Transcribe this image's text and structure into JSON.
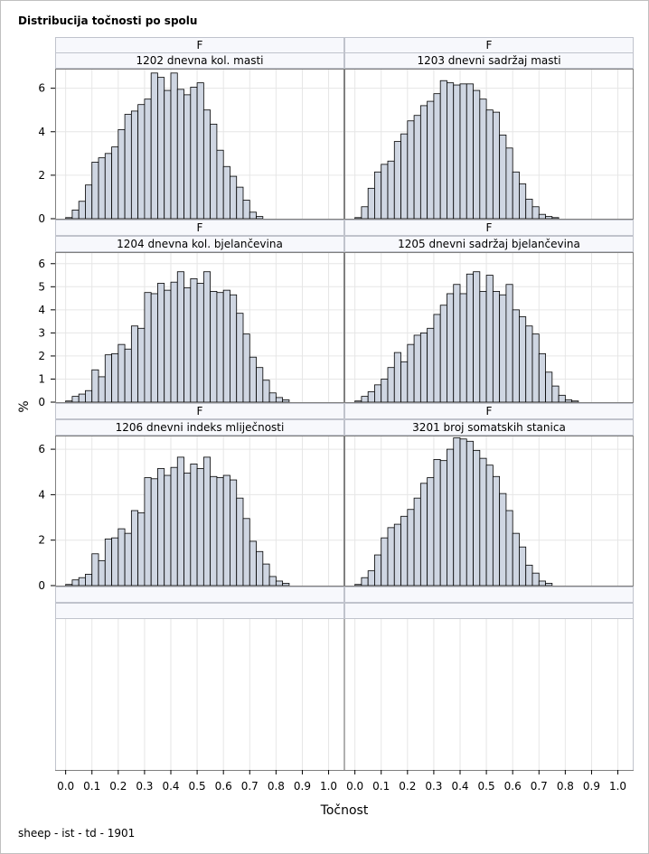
{
  "title": "Distribucija točnosti po spolu",
  "footnote": "sheep - ist - td - 1901",
  "colors": {
    "bar_fill": "#cfd6e2",
    "bar_stroke": "#000000",
    "header_fill": "#f7f8fc",
    "header_stroke": "#c0c3cc",
    "panel_border": "#808080",
    "grid": "#e6e6e6"
  },
  "chart_data": {
    "type": "bar",
    "xlabel": "Točnost",
    "ylabel": "%",
    "xlim": [
      -0.04,
      1.06
    ],
    "bin_width": 0.025,
    "bin_start": 0.0,
    "x_ticks": [
      "0.0",
      "0.1",
      "0.2",
      "0.3",
      "0.4",
      "0.5",
      "0.6",
      "0.7",
      "0.8",
      "0.9",
      "1.0"
    ],
    "grid": true,
    "row_ylims": [
      [
        0,
        6.9
      ],
      [
        0,
        6.5
      ],
      [
        0,
        6.6
      ]
    ],
    "y_ticks": [
      [
        "0",
        "2",
        "4",
        "6"
      ],
      [
        "0",
        "1",
        "2",
        "3",
        "4",
        "5",
        "6"
      ],
      [
        "0",
        "2",
        "4",
        "6"
      ]
    ],
    "panels": [
      {
        "header": "F",
        "label": "1202 dnevna kol. masti",
        "values": [
          0.05,
          0.4,
          0.8,
          1.55,
          2.6,
          2.8,
          3.0,
          3.3,
          4.1,
          4.8,
          4.95,
          5.25,
          5.5,
          6.7,
          6.5,
          5.9,
          6.7,
          5.95,
          5.7,
          6.05,
          6.25,
          5.0,
          4.35,
          3.15,
          2.4,
          1.95,
          1.45,
          0.85,
          0.3,
          0.1
        ]
      },
      {
        "header": "F",
        "label": "1203 dnevni sadržaj masti",
        "values": [
          0.05,
          0.55,
          1.4,
          2.15,
          2.5,
          2.65,
          3.55,
          3.9,
          4.5,
          4.75,
          5.2,
          5.4,
          5.75,
          6.35,
          6.25,
          6.15,
          6.2,
          6.2,
          5.9,
          5.5,
          5.0,
          4.9,
          3.85,
          3.25,
          2.15,
          1.6,
          0.9,
          0.55,
          0.2,
          0.1,
          0.05
        ]
      },
      {
        "header": "F",
        "label": "1204 dnevna kol. bjelančevina",
        "values": [
          0.05,
          0.25,
          0.35,
          0.5,
          1.4,
          1.1,
          2.05,
          2.1,
          2.5,
          2.3,
          3.3,
          3.2,
          4.75,
          4.7,
          5.15,
          4.85,
          5.2,
          5.65,
          4.95,
          5.35,
          5.15,
          5.65,
          4.8,
          4.75,
          4.85,
          4.65,
          3.85,
          2.95,
          1.95,
          1.5,
          0.95,
          0.4,
          0.2,
          0.1
        ]
      },
      {
        "header": "F",
        "label": "1205 dnevni sadržaj bjelančevina",
        "values": [
          0.05,
          0.25,
          0.45,
          0.75,
          1.0,
          1.5,
          2.15,
          1.75,
          2.5,
          2.9,
          3.0,
          3.2,
          3.8,
          4.2,
          4.7,
          5.1,
          4.7,
          5.55,
          5.65,
          4.8,
          5.5,
          4.8,
          4.65,
          5.1,
          4.0,
          3.7,
          3.3,
          2.95,
          2.1,
          1.3,
          0.7,
          0.3,
          0.1,
          0.05
        ]
      },
      {
        "header": "F",
        "label": "1206 dnevni indeks mliječnosti",
        "values": [
          0.05,
          0.25,
          0.35,
          0.5,
          1.4,
          1.1,
          2.05,
          2.1,
          2.5,
          2.3,
          3.3,
          3.2,
          4.75,
          4.7,
          5.15,
          4.85,
          5.2,
          5.65,
          4.95,
          5.35,
          5.15,
          5.65,
          4.8,
          4.75,
          4.85,
          4.65,
          3.85,
          2.95,
          1.95,
          1.5,
          0.95,
          0.4,
          0.2,
          0.1
        ]
      },
      {
        "header": "F",
        "label": "3201 broj somatskih stanica",
        "values": [
          0.05,
          0.35,
          0.65,
          1.35,
          2.1,
          2.55,
          2.7,
          3.05,
          3.35,
          3.85,
          4.5,
          4.75,
          5.55,
          5.5,
          6.0,
          6.5,
          6.45,
          6.35,
          5.95,
          5.6,
          5.3,
          4.8,
          4.05,
          3.3,
          2.3,
          1.7,
          0.9,
          0.55,
          0.2,
          0.1
        ]
      }
    ]
  }
}
